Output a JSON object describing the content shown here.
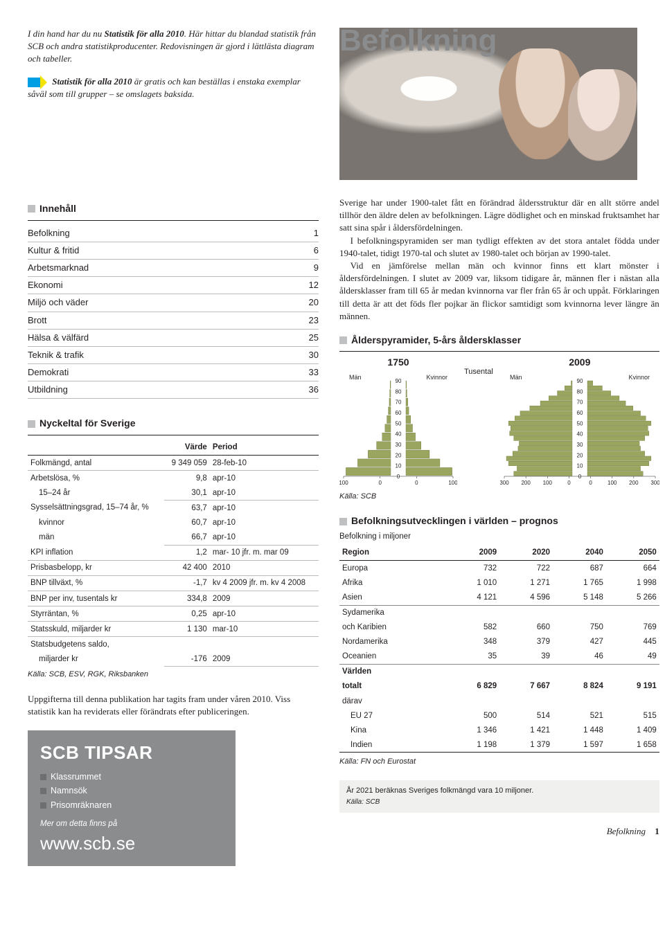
{
  "hero_title": "Befolkning",
  "intro": {
    "p1_a": "I din hand har du nu ",
    "p1_b": "Statistik för alla 2010",
    "p1_c": ". Här hittar du blandad statistik från SCB och andra statistikproducenter. Redovisningen är gjord i lättlästa diagram och tabeller.",
    "p2_b": "Statistik för alla 2010",
    "p2_c": " är gratis och kan beställas i enstaka exemplar såväl som till grupper – se omslagets baksida."
  },
  "toc": {
    "heading": "Innehåll",
    "items": [
      {
        "label": "Befolkning",
        "page": "1"
      },
      {
        "label": "Kultur & fritid",
        "page": "6"
      },
      {
        "label": "Arbetsmarknad",
        "page": "9"
      },
      {
        "label": "Ekonomi",
        "page": "12"
      },
      {
        "label": "Miljö och väder",
        "page": "20"
      },
      {
        "label": "Brott",
        "page": "23"
      },
      {
        "label": "Hälsa & välfärd",
        "page": "25"
      },
      {
        "label": "Teknik & trafik",
        "page": "30"
      },
      {
        "label": "Demokrati",
        "page": "33"
      },
      {
        "label": "Utbildning",
        "page": "36"
      }
    ]
  },
  "kv": {
    "heading": "Nyckeltal för Sverige",
    "col_value": "Värde",
    "col_period": "Period",
    "rows": [
      {
        "label": "Folkmängd, antal",
        "value": "9 349 059",
        "period": "28-feb-10",
        "line": true
      },
      {
        "label": "Arbetslösa, %",
        "value": "9,8",
        "period": "apr-10",
        "line": false
      },
      {
        "label": "15–24 år",
        "value": "30,1",
        "period": "apr-10",
        "line": true,
        "indent": true
      },
      {
        "label": "Sysselsättningsgrad, 15–74 år, %",
        "value": "63,7",
        "period": "apr-10",
        "line": false
      },
      {
        "label": "kvinnor",
        "value": "60,7",
        "period": "apr-10",
        "line": false,
        "indent": true
      },
      {
        "label": "män",
        "value": "66,7",
        "period": "apr-10",
        "line": true,
        "indent": true
      },
      {
        "label": "KPI inflation",
        "value": "1,2",
        "period": "mar- 10 jfr. m. mar 09",
        "line": true
      },
      {
        "label": "Prisbasbelopp, kr",
        "value": "42 400",
        "period": "2010",
        "line": true
      },
      {
        "label": "BNP tillväxt, %",
        "value": "-1,7",
        "period": "kv 4 2009 jfr. m. kv 4 2008",
        "line": true
      },
      {
        "label": "BNP per inv, tusentals kr",
        "value": "334,8",
        "period": "2009",
        "line": true
      },
      {
        "label": "Styrräntan, %",
        "value": "0,25",
        "period": "apr-10",
        "line": true
      },
      {
        "label": "Statsskuld, miljarder kr",
        "value": "1 130",
        "period": "mar-10",
        "line": true
      },
      {
        "label": "Statsbudgetens saldo,",
        "value": "",
        "period": "",
        "line": false
      },
      {
        "label": "miljarder kr",
        "value": "-176",
        "period": "2009",
        "line": true,
        "indent": true
      }
    ],
    "source": "Källa: SCB, ESV, RGK, Riksbanken"
  },
  "note": "Uppgifterna till denna publikation har tagits fram under våren 2010. Viss statistik kan ha reviderats eller förändrats efter publiceringen.",
  "tipsar": {
    "title": "SCB TIPSAR",
    "items": [
      "Klassrummet",
      "Namnsök",
      "Prisomräknaren"
    ],
    "more": "Mer om detta finns på",
    "url": "www.scb.se"
  },
  "body": {
    "p1": "Sverige har under 1900-talet fått en förändrad åldersstruktur där en allt större andel tillhör den äldre delen av befolkningen. Lägre dödlighet och en minskad fruktsamhet har satt sina spår i åldersfördelningen.",
    "p2": "I befolkningspyramiden ser man tydligt effekten av det stora antalet födda under 1940-talet, tidigt 1970-tal och slutet av 1980-talet och början av 1990-talet.",
    "p3": "Vid en jämförelse mellan män och kvinnor finns ett klart mönster i åldersfördelningen. I slutet av 2009 var, liksom tidigare år, männen fler i nästan alla åldersklasser fram till 65 år medan kvinnorna var fler från 65 år och uppåt. Förklaringen till detta är att det föds fler pojkar än flickor samtidigt som kvinnorna lever längre än männen."
  },
  "pyramid": {
    "heading": "Ålderspyramider, 5-års åldersklasser",
    "unit": "Tusental",
    "men": "Män",
    "women": "Kvinnor",
    "source": "Källa: SCB",
    "y_labels": [
      "90",
      "80",
      "70",
      "60",
      "50",
      "40",
      "30",
      "20",
      "10",
      "0"
    ],
    "y1750": {
      "year": "1750",
      "x_ticks": [
        "100",
        "0",
        "0",
        "100"
      ],
      "men": [
        1,
        2,
        3,
        5,
        8,
        12,
        18,
        30,
        48,
        70,
        95
      ],
      "women": [
        1,
        2,
        4,
        6,
        10,
        14,
        20,
        32,
        50,
        72,
        98
      ],
      "color": "#9aa65f",
      "x_max": 100
    },
    "y2009": {
      "year": "2009",
      "x_ticks": [
        "300",
        "200",
        "100",
        "0",
        "0",
        "100",
        "200",
        "300"
      ],
      "men": [
        5,
        35,
        70,
        110,
        150,
        200,
        245,
        270,
        300,
        290,
        295,
        275,
        250,
        255,
        280,
        310,
        300,
        260,
        275
      ],
      "women": [
        25,
        70,
        110,
        150,
        180,
        215,
        250,
        275,
        300,
        285,
        290,
        270,
        245,
        250,
        270,
        300,
        290,
        250,
        262
      ],
      "color": "#9aa65f",
      "x_max": 320
    }
  },
  "world": {
    "heading": "Befolkningsutvecklingen i världen – prognos",
    "sub": "Befolkning i miljoner",
    "cols": [
      "Region",
      "2009",
      "2020",
      "2040",
      "2050"
    ],
    "rows": [
      {
        "c": [
          "Europa",
          "732",
          "722",
          "687",
          "664"
        ]
      },
      {
        "c": [
          "Afrika",
          "1 010",
          "1 271",
          "1 765",
          "1 998"
        ]
      },
      {
        "c": [
          "Asien",
          "4 121",
          "4 596",
          "5 148",
          "5 266"
        ],
        "sep_after": true
      },
      {
        "c": [
          "Sydamerika"
        ],
        "noline": true
      },
      {
        "c": [
          "och Karibien",
          "582",
          "660",
          "750",
          "769"
        ]
      },
      {
        "c": [
          "Nordamerika",
          "348",
          "379",
          "427",
          "445"
        ]
      },
      {
        "c": [
          "Oceanien",
          "35",
          "39",
          "46",
          "49"
        ],
        "sep_after": true
      }
    ],
    "total_label": "Världen",
    "total_sub": "totalt",
    "total": [
      "6 829",
      "7 667",
      "8 824",
      "9 191"
    ],
    "darav": "därav",
    "darav_rows": [
      {
        "c": [
          "EU 27",
          "500",
          "514",
          "521",
          "515"
        ]
      },
      {
        "c": [
          "Kina",
          "1 346",
          "1 421",
          "1 448",
          "1 409"
        ]
      },
      {
        "c": [
          "Indien",
          "1 198",
          "1 379",
          "1 597",
          "1 658"
        ]
      }
    ],
    "source": "Källa: FN och Eurostat"
  },
  "footbox": {
    "text": "År 2021 beräknas Sveriges folkmängd vara 10 miljoner.",
    "source": "Källa: SCB"
  },
  "footer": {
    "section": "Befolkning",
    "page": "1"
  }
}
